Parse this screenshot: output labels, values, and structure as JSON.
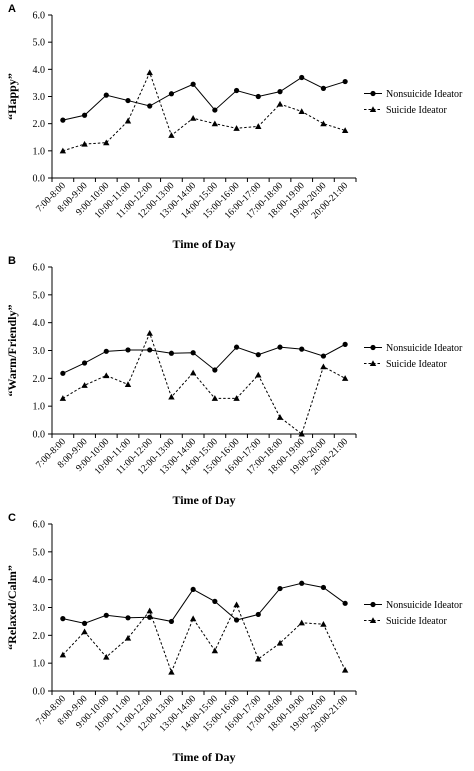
{
  "chart_data": [
    {
      "type": "line",
      "panel_label": "A",
      "title": "",
      "xlabel": "Time of Day",
      "ylabel": "“Happy”",
      "ylim": [
        0,
        6
      ],
      "yticks": [
        "0.0",
        "1.0",
        "2.0",
        "3.0",
        "4.0",
        "5.0",
        "6.0"
      ],
      "grid": false,
      "legend_position": "right",
      "categories": [
        "7:00-8:00",
        "8:00-9:00",
        "9:00-10:00",
        "10:00-11:00",
        "11:00-12:00",
        "12:00-13:00",
        "13:00-14:00",
        "14:00-15:00",
        "15:00-16:00",
        "16:00-17:00",
        "17:00-18:00",
        "18:00-19:00",
        "19:00-20:00",
        "20:00-21:00"
      ],
      "series": [
        {
          "name": "Nonsuicide Ideator",
          "marker": "circle",
          "line": "solid",
          "values": [
            2.13,
            2.31,
            3.05,
            2.85,
            2.65,
            3.1,
            3.45,
            2.5,
            3.22,
            3.0,
            3.18,
            3.7,
            3.3,
            3.55
          ]
        },
        {
          "name": "Suicide Ideator",
          "marker": "triangle",
          "line": "dashed",
          "values": [
            1.0,
            1.25,
            1.3,
            2.1,
            3.88,
            1.57,
            2.2,
            2.0,
            1.83,
            1.9,
            2.72,
            2.45,
            2.0,
            1.75
          ]
        }
      ]
    },
    {
      "type": "line",
      "panel_label": "B",
      "title": "",
      "xlabel": "Time of Day",
      "ylabel": "“Warm/Friendly”",
      "ylim": [
        0,
        6
      ],
      "yticks": [
        "0.0",
        "1.0",
        "2.0",
        "3.0",
        "4.0",
        "5.0",
        "6.0"
      ],
      "grid": false,
      "legend_position": "right",
      "categories": [
        "7:00-8:00",
        "8:00-9:00",
        "9:00-10:00",
        "10:00-11:00",
        "11:00-12:00",
        "12:00-13:00",
        "13:00-14:00",
        "14:00-15:00",
        "15:00-16:00",
        "16:00-17:00",
        "17:00-18:00",
        "18:00-19:00",
        "19:00-20:00",
        "20:00-21:00"
      ],
      "series": [
        {
          "name": "Nonsuicide Ideator",
          "marker": "circle",
          "line": "solid",
          "values": [
            2.18,
            2.55,
            2.97,
            3.02,
            3.02,
            2.9,
            2.92,
            2.3,
            3.12,
            2.85,
            3.12,
            3.05,
            2.8,
            3.22
          ]
        },
        {
          "name": "Suicide Ideator",
          "marker": "triangle",
          "line": "dashed",
          "values": [
            1.28,
            1.75,
            2.1,
            1.78,
            3.62,
            1.33,
            2.2,
            1.28,
            1.28,
            2.12,
            0.6,
            0.0,
            2.42,
            2.0
          ]
        }
      ]
    },
    {
      "type": "line",
      "panel_label": "C",
      "title": "",
      "xlabel": "Time of Day",
      "ylabel": "“Relaxed/Calm”",
      "ylim": [
        0,
        6
      ],
      "yticks": [
        "0.0",
        "1.0",
        "2.0",
        "3.0",
        "4.0",
        "5.0",
        "6.0"
      ],
      "grid": false,
      "legend_position": "right",
      "categories": [
        "7:00-8:00",
        "8:00-9:00",
        "9:00-10:00",
        "10:00-11:00",
        "11:00-12:00",
        "12:00-13:00",
        "13:00-14:00",
        "14:00-15:00",
        "15:00-16:00",
        "16:00-17:00",
        "17:00-18:00",
        "18:00-19:00",
        "19:00-20:00",
        "20:00-21:00"
      ],
      "series": [
        {
          "name": "Nonsuicide Ideator",
          "marker": "circle",
          "line": "solid",
          "values": [
            2.6,
            2.43,
            2.72,
            2.63,
            2.65,
            2.5,
            3.65,
            3.22,
            2.55,
            2.75,
            3.68,
            3.87,
            3.72,
            3.15
          ]
        },
        {
          "name": "Suicide Ideator",
          "marker": "triangle",
          "line": "dashed",
          "values": [
            1.3,
            2.13,
            1.22,
            1.9,
            2.88,
            0.68,
            2.6,
            1.45,
            3.1,
            1.15,
            1.72,
            2.45,
            2.4,
            0.75
          ]
        }
      ]
    }
  ]
}
